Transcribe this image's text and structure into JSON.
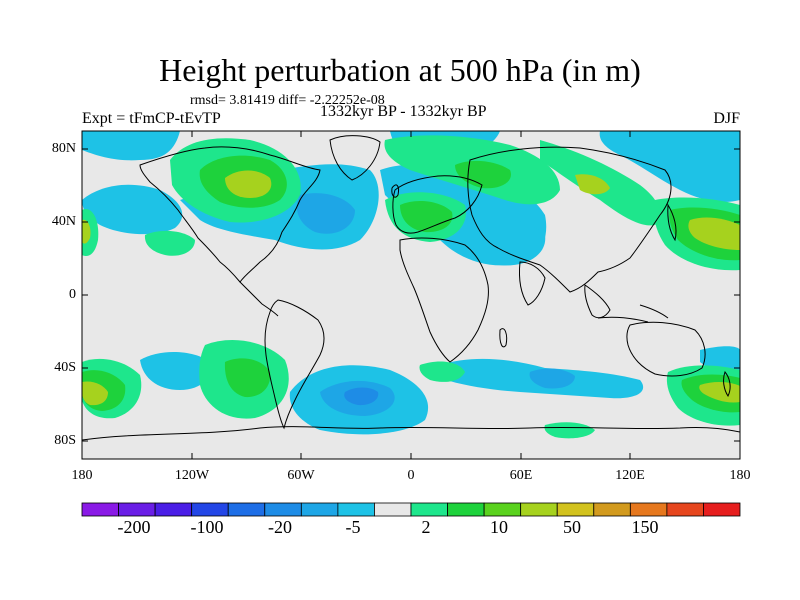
{
  "title": "Height perturbation at 500 hPa (in m)",
  "stats": "rmsd= 3.81419 diff= -2.22252e-08",
  "left_label": "Expt = tFmCP-tEvTP",
  "center_label": "1332kyr BP - 1332kyr BP",
  "right_label": "DJF",
  "y_ticks": [
    "80N",
    "40N",
    "0",
    "40S",
    "80S"
  ],
  "x_ticks": [
    "180",
    "120W",
    "60W",
    "0",
    "60E",
    "120E",
    "180"
  ],
  "colorbar": {
    "labels": [
      "-200",
      "-100",
      "-20",
      "-5",
      "2",
      "10",
      "50",
      "150"
    ],
    "colors": [
      "#8a1ae6",
      "#6a1ee6",
      "#4a1ee6",
      "#2346e6",
      "#1e6ee6",
      "#1e8ce6",
      "#1ea6e6",
      "#1ec2e6",
      "#e8e8e8",
      "#1ee68c",
      "#1ed23c",
      "#5ad21e",
      "#a6d21e",
      "#d2c21e",
      "#d29a1e",
      "#e6781e",
      "#e6461e",
      "#e61e1e"
    ]
  },
  "map_colors": {
    "background": "#e8e8e8",
    "neg_light": "#1ec2e6",
    "neg_mid": "#1ea6e6",
    "neg_dark": "#1e8ce6",
    "pos_light": "#1ee68c",
    "pos_mid": "#1ed23c",
    "pos_dark": "#a6d21e"
  }
}
